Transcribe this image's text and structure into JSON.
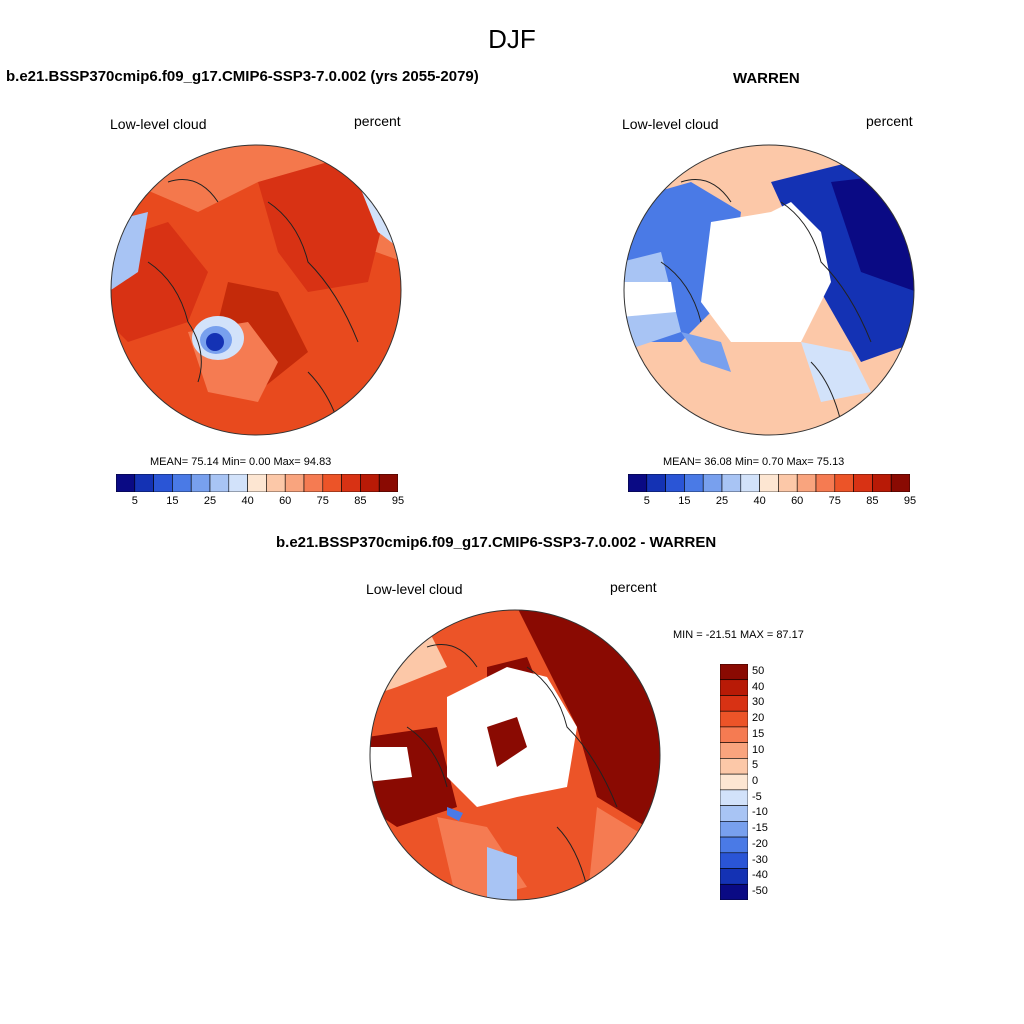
{
  "figure": {
    "title": "DJF"
  },
  "panels": [
    {
      "id": "model",
      "header": "b.e21.BSSP370cmip6.f09_g17.CMIP6-SSP3-7.0.002 (yrs 2055-2079)",
      "left_label": "Low-level cloud",
      "right_label": "percent",
      "stats": "MEAN=  75.14  Min=   0.00  Max=  94.83"
    },
    {
      "id": "obs",
      "header": "WARREN",
      "left_label": "Low-level cloud",
      "right_label": "percent",
      "stats": "MEAN=  36.08  Min=   0.70  Max=  75.13"
    },
    {
      "id": "diff",
      "header": "b.e21.BSSP370cmip6.f09_g17.CMIP6-SSP3-7.0.002 - WARREN",
      "left_label": "Low-level cloud",
      "right_label": "percent",
      "stats": "MIN = -21.51 MAX =  87.17"
    }
  ],
  "colorbar_abs": {
    "colors": [
      "#0a0a84",
      "#1432b4",
      "#2a55d6",
      "#4a7ae6",
      "#78a0ee",
      "#a8c4f4",
      "#d2e2fa",
      "#fde6d2",
      "#fcc8a8",
      "#f9a47e",
      "#f57b52",
      "#ec5428",
      "#d83214",
      "#b81a06",
      "#8a0a02"
    ],
    "tick_labels": [
      "5",
      "15",
      "25",
      "40",
      "60",
      "75",
      "85",
      "95"
    ]
  },
  "colorbar_diff": {
    "colors": [
      "#8a0a02",
      "#b81a06",
      "#d83214",
      "#ec5428",
      "#f57b52",
      "#f9a47e",
      "#fcc8a8",
      "#fde6d2",
      "#d2e2fa",
      "#a8c4f4",
      "#78a0ee",
      "#4a7ae6",
      "#2a55d6",
      "#1432b4",
      "#0a0a84"
    ],
    "tick_labels": [
      "50",
      "40",
      "30",
      "20",
      "15",
      "10",
      "5",
      "0",
      "-5",
      "-10",
      "-15",
      "-20",
      "-30",
      "-40",
      "-50"
    ]
  },
  "palette": {
    "red_dark": "#c42a0a",
    "red_mid": "#e84a1e",
    "red_light": "#f4784c",
    "blue_dark": "#0a0a84",
    "blue_mid": "#2a55d6",
    "blue_light": "#a8c4f4",
    "peach": "#fcc8a8",
    "maroon": "#8a0a02"
  }
}
